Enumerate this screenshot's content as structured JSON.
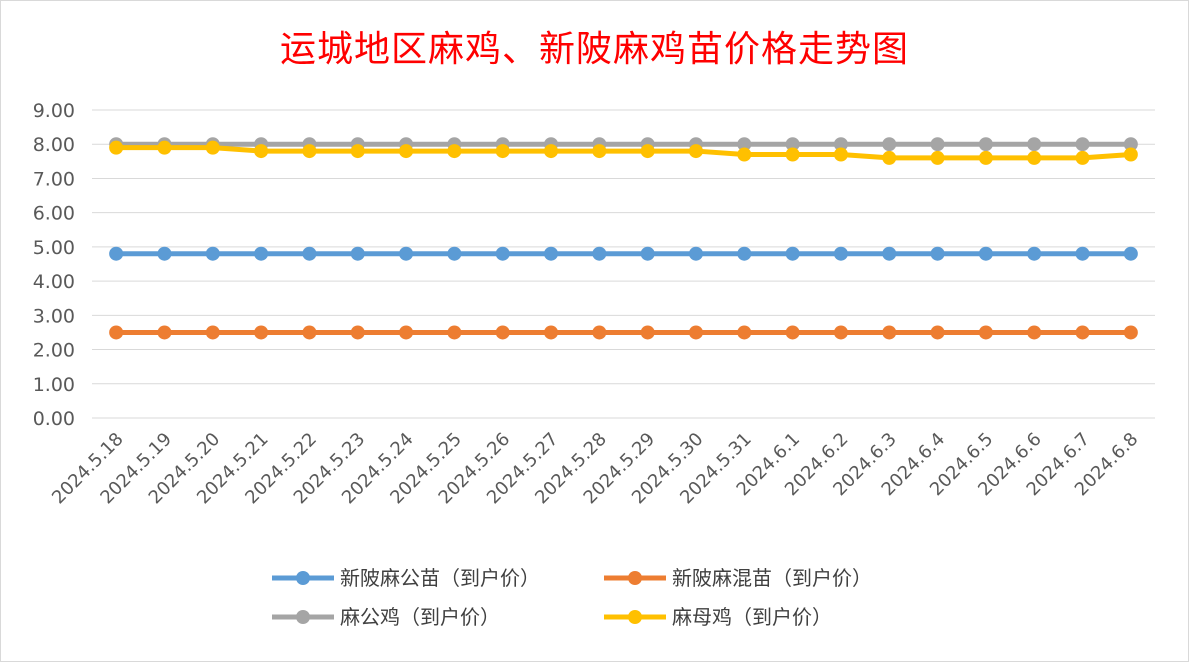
{
  "chart_data": {
    "type": "line",
    "title": "运城地区麻鸡、新陂麻鸡苗价格走势图",
    "categories": [
      "2024.5.18",
      "2024.5.19",
      "2024.5.20",
      "2024.5.21",
      "2024.5.22",
      "2024.5.23",
      "2024.5.24",
      "2024.5.25",
      "2024.5.26",
      "2024.5.27",
      "2024.5.28",
      "2024.5.29",
      "2024.5.30",
      "2024.5.31",
      "2024.6.1",
      "2024.6.2",
      "2024.6.3",
      "2024.6.4",
      "2024.6.5",
      "2024.6.6",
      "2024.6.7",
      "2024.6.8"
    ],
    "y_ticks": [
      "0.00",
      "1.00",
      "2.00",
      "3.00",
      "4.00",
      "5.00",
      "6.00",
      "7.00",
      "8.00",
      "9.00"
    ],
    "ylim": [
      0,
      9
    ],
    "grid": true,
    "legend_position": "bottom",
    "series": [
      {
        "name": "新陂麻公苗（到户价）",
        "color": "#5b9bd5",
        "values": [
          4.8,
          4.8,
          4.8,
          4.8,
          4.8,
          4.8,
          4.8,
          4.8,
          4.8,
          4.8,
          4.8,
          4.8,
          4.8,
          4.8,
          4.8,
          4.8,
          4.8,
          4.8,
          4.8,
          4.8,
          4.8,
          4.8
        ]
      },
      {
        "name": "新陂麻混苗（到户价）",
        "color": "#ed7d31",
        "values": [
          2.5,
          2.5,
          2.5,
          2.5,
          2.5,
          2.5,
          2.5,
          2.5,
          2.5,
          2.5,
          2.5,
          2.5,
          2.5,
          2.5,
          2.5,
          2.5,
          2.5,
          2.5,
          2.5,
          2.5,
          2.5,
          2.5
        ]
      },
      {
        "name": "麻公鸡（到户价）",
        "color": "#a5a5a5",
        "values": [
          8.0,
          8.0,
          8.0,
          8.0,
          8.0,
          8.0,
          8.0,
          8.0,
          8.0,
          8.0,
          8.0,
          8.0,
          8.0,
          8.0,
          8.0,
          8.0,
          8.0,
          8.0,
          8.0,
          8.0,
          8.0,
          8.0
        ]
      },
      {
        "name": "麻母鸡（到户价）",
        "color": "#ffc000",
        "values": [
          7.9,
          7.9,
          7.9,
          7.8,
          7.8,
          7.8,
          7.8,
          7.8,
          7.8,
          7.8,
          7.8,
          7.8,
          7.8,
          7.7,
          7.7,
          7.7,
          7.6,
          7.6,
          7.6,
          7.6,
          7.6,
          7.7
        ]
      }
    ]
  }
}
